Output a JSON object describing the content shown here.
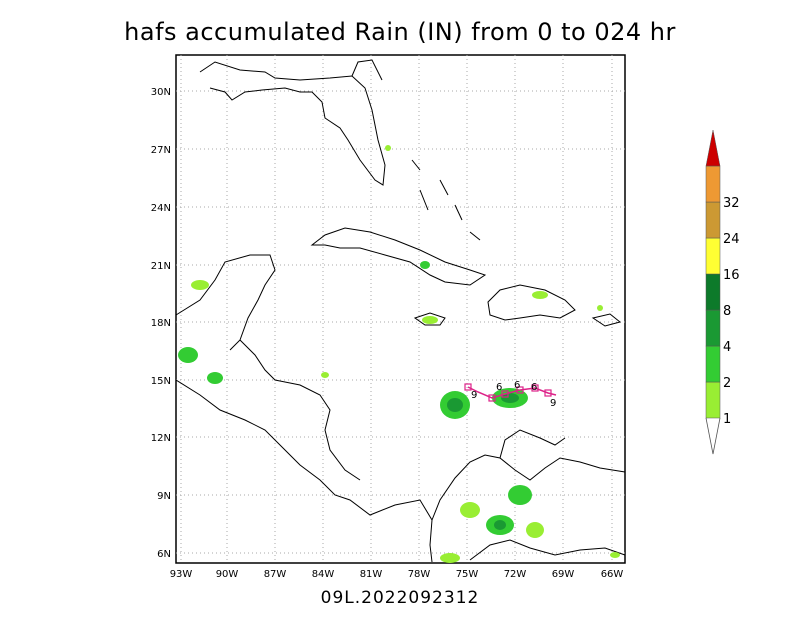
{
  "title": "hafs accumulated Rain (IN) from 0 to 024 hr",
  "subtitle": "09L.2022092312",
  "lat_labels": [
    "30N",
    "27N",
    "24N",
    "21N",
    "18N",
    "15N",
    "12N",
    "9N",
    "6N"
  ],
  "lon_labels": [
    "93W",
    "90W",
    "87W",
    "84W",
    "81W",
    "78W",
    "75W",
    "72W",
    "69W",
    "66W"
  ],
  "colorbar": {
    "levels": [
      "1",
      "2",
      "4",
      "8",
      "16",
      "24",
      "32"
    ],
    "colors": [
      "#99ee33",
      "#33cc33",
      "#1a9933",
      "#0d7a2a",
      "#ffff33",
      "#cc9933",
      "#ee9933",
      "#cc0000"
    ]
  },
  "track_labels": [
    "9",
    "6",
    "6",
    "6",
    "9"
  ],
  "colors": {
    "track": "#dd2288",
    "land_line": "#000000",
    "grid": "#aaaaaa"
  }
}
